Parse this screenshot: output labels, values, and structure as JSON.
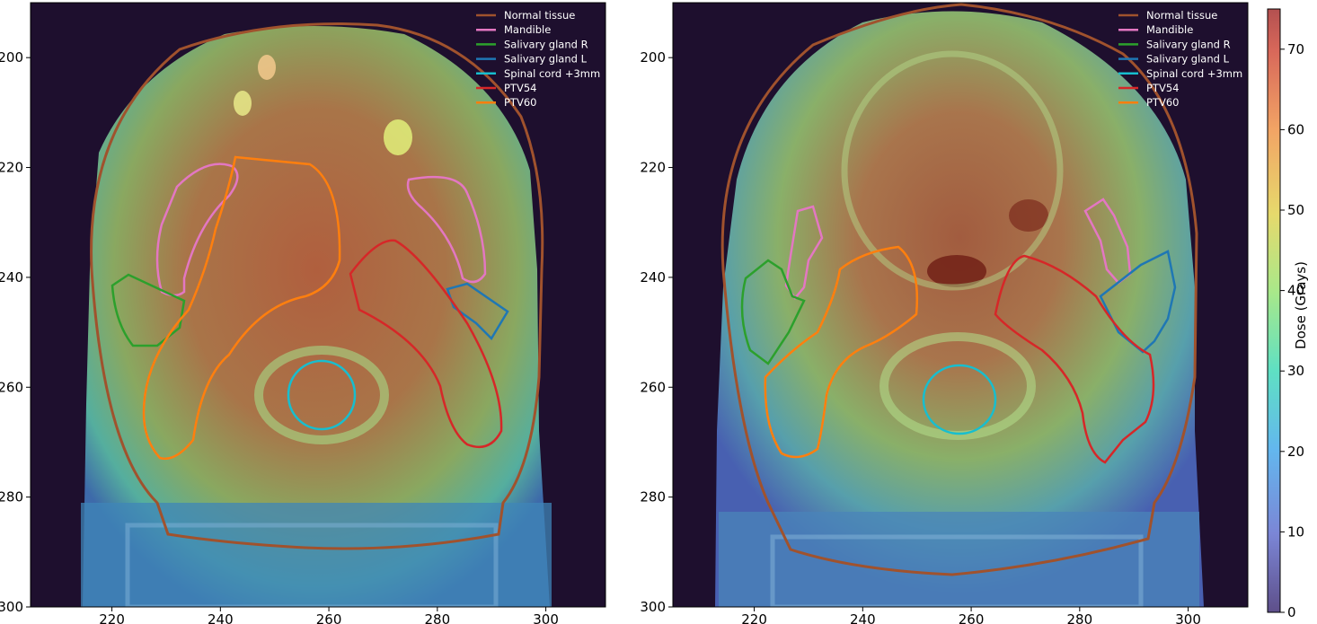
{
  "chart_data": [
    {
      "type": "heatmap",
      "title": "",
      "xlabel": "",
      "ylabel": "",
      "x_ticks": [
        220,
        240,
        260,
        280,
        300
      ],
      "y_ticks": [
        200,
        220,
        240,
        260,
        280,
        300
      ],
      "xlim": [
        205,
        311
      ],
      "ylim": [
        300,
        190
      ],
      "legend_position": "top-right",
      "series": [
        {
          "name": "Normal tissue",
          "color": "#a0522d"
        },
        {
          "name": "Mandible",
          "color": "#e377c2"
        },
        {
          "name": "Salivary gland R",
          "color": "#2ca02c"
        },
        {
          "name": "Salivary gland L",
          "color": "#1f77b4"
        },
        {
          "name": "Spinal cord +3mm",
          "color": "#17becf"
        },
        {
          "name": "PTV54",
          "color": "#d62728"
        },
        {
          "name": "PTV60",
          "color": "#ff7f0e"
        }
      ]
    },
    {
      "type": "heatmap",
      "title": "",
      "xlabel": "",
      "ylabel": "",
      "x_ticks": [
        220,
        240,
        260,
        280,
        300
      ],
      "y_ticks": [
        200,
        220,
        240,
        260,
        280,
        300
      ],
      "xlim": [
        205,
        311
      ],
      "ylim": [
        300,
        190
      ],
      "legend_position": "top-right",
      "series": [
        {
          "name": "Normal tissue",
          "color": "#a0522d"
        },
        {
          "name": "Mandible",
          "color": "#e377c2"
        },
        {
          "name": "Salivary gland R",
          "color": "#2ca02c"
        },
        {
          "name": "Salivary gland L",
          "color": "#1f77b4"
        },
        {
          "name": "Spinal cord +3mm",
          "color": "#17becf"
        },
        {
          "name": "PTV54",
          "color": "#d62728"
        },
        {
          "name": "PTV60",
          "color": "#ff7f0e"
        }
      ],
      "colorbar": {
        "label": "Dose (Grays)",
        "range": [
          0,
          75
        ],
        "ticks": [
          0,
          10,
          20,
          30,
          40,
          50,
          60,
          70
        ]
      }
    }
  ]
}
